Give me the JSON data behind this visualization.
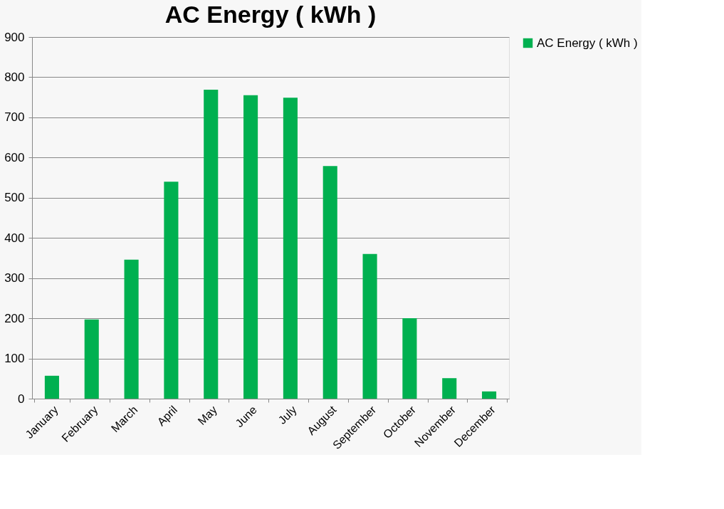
{
  "chart_data": {
    "type": "bar",
    "title": "AC Energy ( kWh )",
    "categories": [
      "January",
      "February",
      "March",
      "April",
      "May",
      "June",
      "July",
      "August",
      "September",
      "October",
      "November",
      "December"
    ],
    "series": [
      {
        "name": "AC Energy ( kWh )",
        "color": "#00b050",
        "values": [
          57,
          197,
          346,
          540,
          769,
          755,
          749,
          579,
          360,
          200,
          51,
          18
        ]
      }
    ],
    "ylim": [
      0,
      900
    ],
    "yticks": [
      0,
      100,
      200,
      300,
      400,
      500,
      600,
      700,
      800,
      900
    ],
    "grid": "y",
    "legend": "right"
  }
}
